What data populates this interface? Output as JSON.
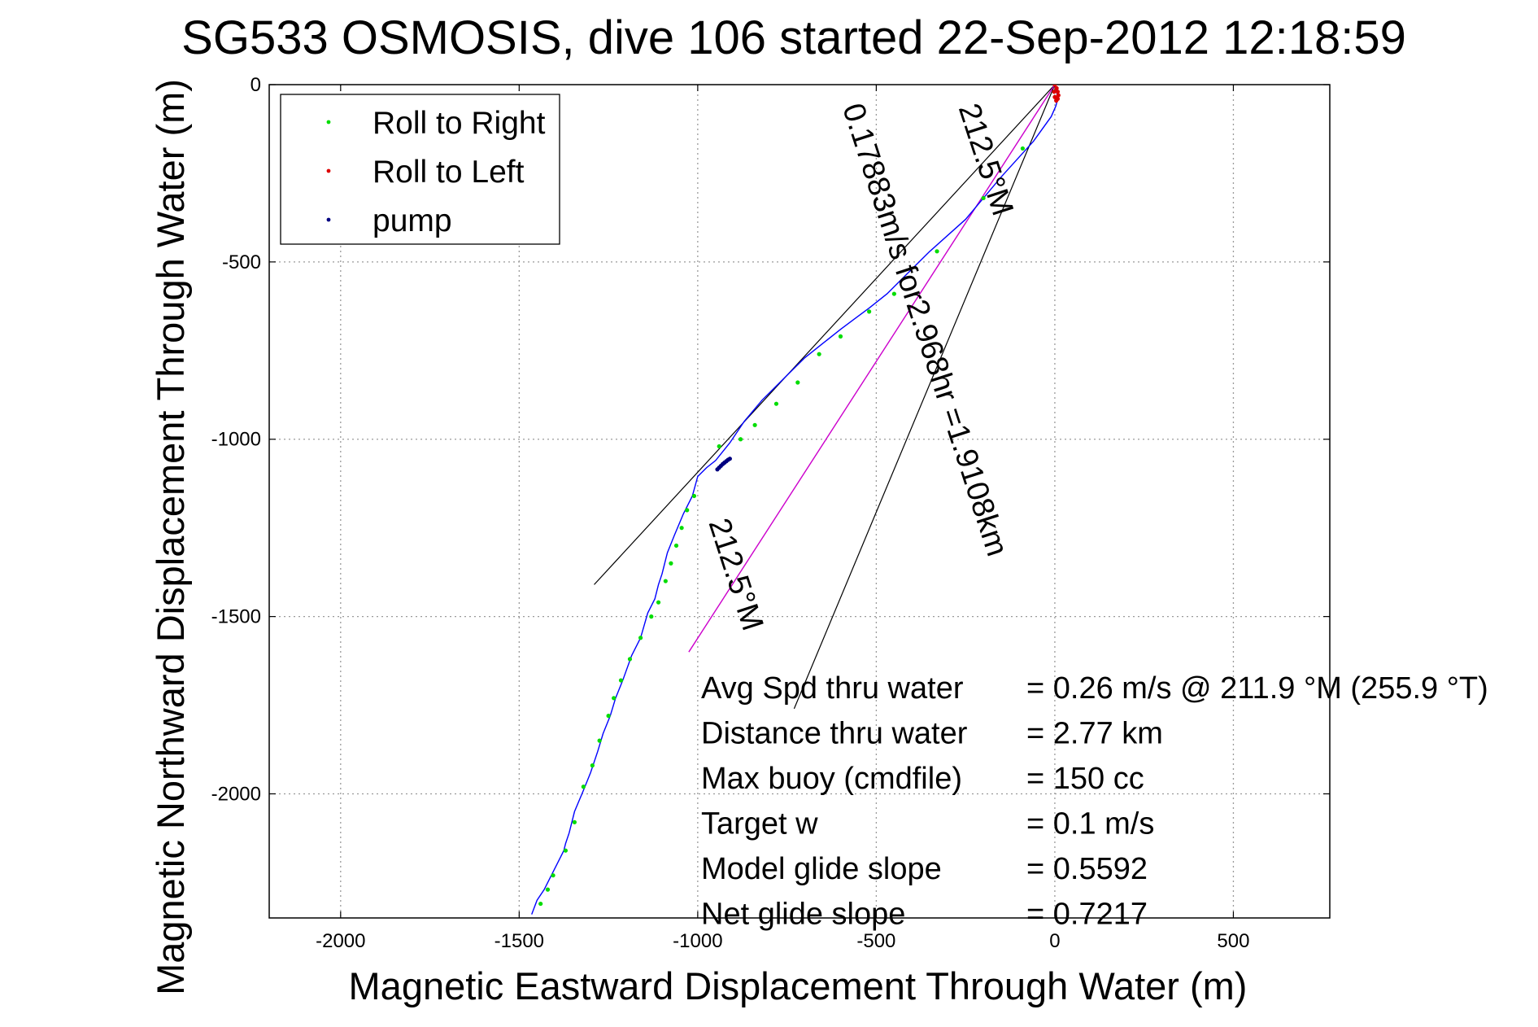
{
  "chart_data": {
    "type": "line",
    "title": "SG533 OSMOSIS, dive 106 started 22-Sep-2012 12:18:59",
    "xlabel": "Magnetic Eastward Displacement Through Water (m)",
    "ylabel": "Magnetic Northward Displacement Through Water (m)",
    "xlim": [
      -2200,
      770
    ],
    "ylim": [
      -2350,
      0
    ],
    "xticks": [
      -2000,
      -1500,
      -1000,
      -500,
      0,
      500
    ],
    "yticks": [
      0,
      -500,
      -1000,
      -1500,
      -2000
    ],
    "grid": true,
    "legend_position": "top-left",
    "legend": [
      {
        "label": "Roll to Right",
        "color": "#00dd00"
      },
      {
        "label": "Roll to Left",
        "color": "#dd0000"
      },
      {
        "label": "pump",
        "color": "#000080"
      }
    ],
    "series": [
      {
        "name": "Roll to Right",
        "color": "#00dd00",
        "x": [
          -90,
          -200,
          -330,
          -450,
          -520,
          -600,
          -660,
          -720,
          -780,
          -840,
          -880,
          -940,
          -1010,
          -1030,
          -1045,
          -1060,
          -1075,
          -1090,
          -1110,
          -1130,
          -1160,
          -1190,
          -1215,
          -1235,
          -1250,
          -1275,
          -1295,
          -1320,
          -1345,
          -1370,
          -1405,
          -1420,
          -1440
        ],
        "y": [
          -180,
          -320,
          -470,
          -590,
          -640,
          -710,
          -760,
          -840,
          -900,
          -960,
          -1000,
          -1020,
          -1160,
          -1200,
          -1250,
          -1300,
          -1350,
          -1400,
          -1460,
          -1500,
          -1560,
          -1620,
          -1680,
          -1730,
          -1780,
          -1850,
          -1920,
          -1980,
          -2080,
          -2160,
          -2230,
          -2270,
          -2310
        ]
      },
      {
        "name": "Roll to Left",
        "color": "#dd0000",
        "x": [
          0,
          5,
          8,
          10,
          8,
          4,
          0,
          -2
        ],
        "y": [
          0,
          -10,
          -20,
          -30,
          -40,
          -45,
          -35,
          -20
        ]
      },
      {
        "name": "pump",
        "color": "#000080",
        "x": [
          -945,
          -940,
          -935,
          -930,
          -925,
          -920,
          -915,
          -910
        ],
        "y": [
          -1085,
          -1080,
          -1075,
          -1070,
          -1066,
          -1062,
          -1058,
          -1055
        ]
      }
    ],
    "track": {
      "color": "#0000ff",
      "x": [
        0,
        5,
        8,
        3,
        -10,
        -60,
        -150,
        -250,
        -350,
        -420,
        -470,
        -520,
        -560,
        -600,
        -650,
        -700,
        -760,
        -820,
        -870,
        -910,
        -950,
        -975,
        -985,
        -1000,
        -1015,
        -1040,
        -1065,
        -1085,
        -1100,
        -1110,
        -1120,
        -1140,
        -1160,
        -1185,
        -1210,
        -1230,
        -1245,
        -1265,
        -1280,
        -1300,
        -1320,
        -1345,
        -1360,
        -1370,
        -1375,
        -1395,
        -1415,
        -1430,
        -1450,
        -1465
      ],
      "y": [
        0,
        -20,
        -40,
        -60,
        -90,
        -160,
        -260,
        -380,
        -470,
        -540,
        -590,
        -630,
        -660,
        -690,
        -730,
        -770,
        -830,
        -890,
        -950,
        -1010,
        -1060,
        -1080,
        -1090,
        -1105,
        -1160,
        -1210,
        -1270,
        -1320,
        -1380,
        -1410,
        -1450,
        -1490,
        -1560,
        -1610,
        -1680,
        -1730,
        -1780,
        -1830,
        -1880,
        -1940,
        -1990,
        -2050,
        -2110,
        -2140,
        -2160,
        -2200,
        -2240,
        -2270,
        -2300,
        -2340
      ]
    },
    "current_line": {
      "color": "#cc00cc",
      "x": [
        0,
        -1025
      ],
      "y": [
        0,
        -1600
      ]
    },
    "cone_lines": {
      "color": "#000000",
      "lines": [
        {
          "x": [
            0,
            -1290
          ],
          "y": [
            0,
            -1410
          ]
        },
        {
          "x": [
            0,
            -730
          ],
          "y": [
            0,
            -1760
          ]
        }
      ]
    },
    "annotations": [
      {
        "text": "212.5°M",
        "x": -220,
        "y": -220,
        "angle_deg": 72
      },
      {
        "text": "0.17883m/s for2.968hr =1.9108km",
        "x": -390,
        "y": -700,
        "angle_deg": 72
      },
      {
        "text": "212.5°M",
        "x": -920,
        "y": -1390,
        "angle_deg": 72
      }
    ],
    "stats": [
      {
        "label": "Avg Spd thru water",
        "value": "=  0.26 m/s @ 211.9 °M (255.9 °T)"
      },
      {
        "label": "Distance thru water",
        "value": "=  2.77 km"
      },
      {
        "label": "Max buoy (cmdfile)",
        "value": "= 150 cc"
      },
      {
        "label": "Target w",
        "value": "= 0.1 m/s"
      },
      {
        "label": "Model glide slope",
        "value": "= 0.5592"
      },
      {
        "label": "Net glide slope",
        "value": "= 0.7217"
      }
    ]
  }
}
